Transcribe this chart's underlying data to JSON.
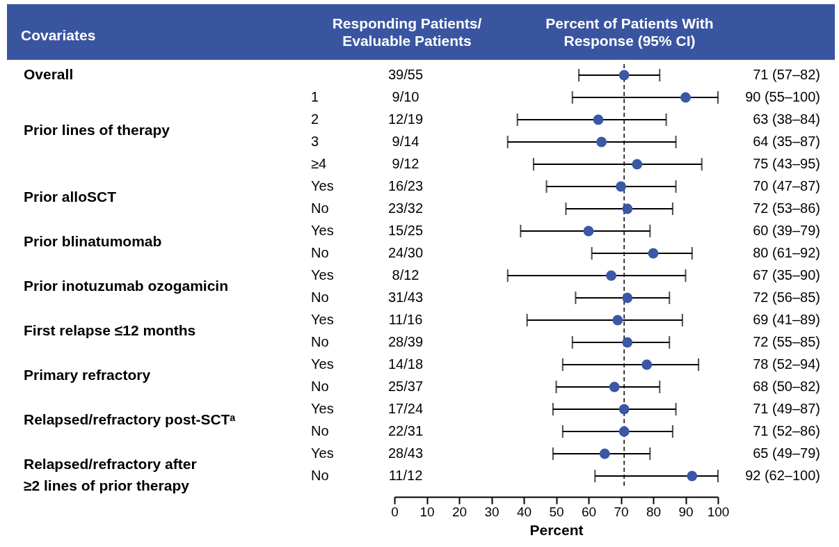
{
  "chart_data": {
    "type": "scatter",
    "xlabel": "Percent",
    "categories": [
      null,
      "1",
      "2",
      "3",
      "≥4",
      "Yes",
      "No",
      "Yes",
      "No",
      "Yes",
      "No",
      "Yes",
      "No",
      "Yes",
      "No",
      "Yes",
      "No",
      "Yes",
      "No"
    ],
    "values": [
      71,
      90,
      63,
      64,
      75,
      70,
      72,
      60,
      80,
      67,
      72,
      69,
      72,
      78,
      68,
      71,
      71,
      65,
      92
    ],
    "orientation": "horizontal",
    "errors": [
      [
        57,
        82
      ],
      [
        55,
        100
      ],
      [
        38,
        84
      ],
      [
        35,
        87
      ],
      [
        43,
        95
      ],
      [
        47,
        87
      ],
      [
        53,
        86
      ],
      [
        39,
        79
      ],
      [
        61,
        92
      ],
      [
        35,
        90
      ],
      [
        56,
        85
      ],
      [
        41,
        89
      ],
      [
        55,
        85
      ],
      [
        52,
        94
      ],
      [
        50,
        82
      ],
      [
        49,
        87
      ],
      [
        52,
        86
      ],
      [
        49,
        79
      ],
      [
        62,
        100
      ]
    ],
    "value_labels": [
      "71 (57–82)",
      "90 (55–100)",
      "63 (38–84)",
      "64 (35–87)",
      "75 (43–95)",
      "70 (47–87)",
      "72 (53–86)",
      "60 (39–79)",
      "80 (61–92)",
      "67 (35–90)",
      "72 (56–85)",
      "69 (41–89)",
      "72 (55–85)",
      "78 (52–94)",
      "68 (50–82)",
      "71 (49–87)",
      "71 (52–86)",
      "65 (49–79)",
      "92 (62–100)"
    ],
    "annotations": [
      "Covariates",
      "Responding Patients/\nEvaluable Patients",
      "Percent of Patients With\nResponse (95% CI)",
      "39/55",
      "9/10",
      "12/19",
      "9/14",
      "9/12",
      "16/23",
      "23/32",
      "15/25",
      "24/30",
      "8/12",
      "31/43",
      "11/16",
      "28/39",
      "14/18",
      "25/37",
      "17/24",
      "22/31",
      "28/43",
      "11/12",
      "Overall",
      "Prior lines of therapy",
      "Prior alloSCT",
      "Prior blinatumomab",
      "Prior inotuzumab ozogamicin",
      "First relapse ≤12 months",
      "Primary refractory",
      "Relapsed/refractory post-SCTᵃ",
      "Relapsed/refractory after\n≥2 lines of prior therapy"
    ],
    "color": "#3b57a6",
    "marker": "circle",
    "xlim": [
      0,
      100
    ],
    "xticks": [
      0,
      10,
      20,
      30,
      40,
      50,
      60,
      70,
      80,
      90,
      100
    ],
    "ref_lines": [
      {
        "axis": "x",
        "value": 71,
        "line_style": "dashed"
      }
    ],
    "grid": false
  }
}
